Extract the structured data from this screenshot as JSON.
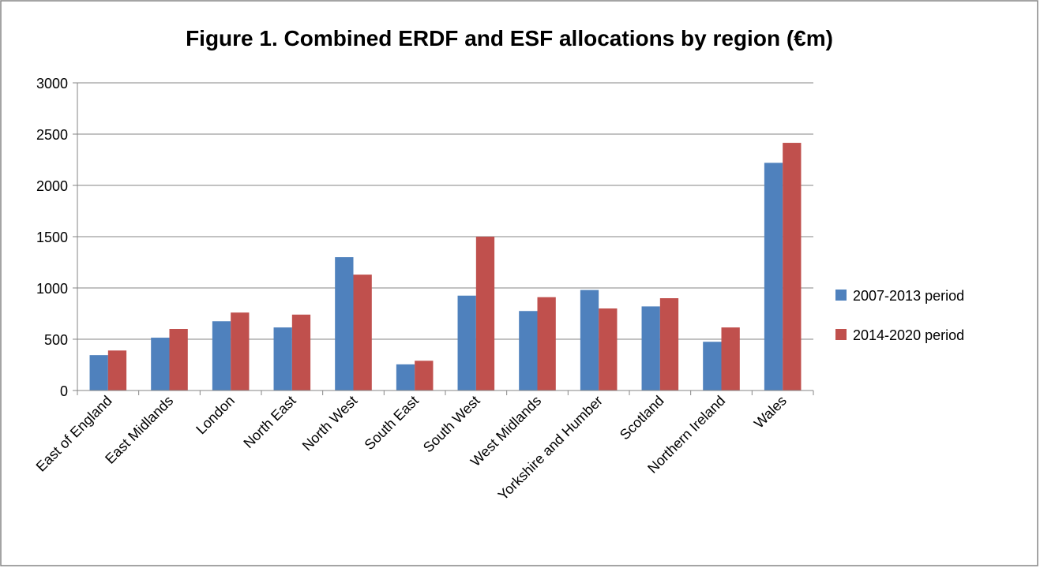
{
  "chart_data": {
    "type": "bar",
    "title": "Figure 1. Combined ERDF and ESF allocations by region (€m)",
    "categories": [
      "East of England",
      "East Midlands",
      "London",
      "North East",
      "North West",
      "South East",
      "South West",
      "West Midlands",
      "Yorkshire and Humber",
      "Scotland",
      "Northern Ireland",
      "Wales"
    ],
    "series": [
      {
        "name": "2007-2013 period",
        "color": "#4f81bd",
        "values": [
          345,
          515,
          675,
          615,
          1300,
          255,
          925,
          775,
          980,
          820,
          475,
          2220
        ]
      },
      {
        "name": "2014-2020 period",
        "color": "#c0504d",
        "values": [
          390,
          600,
          760,
          740,
          1130,
          290,
          1500,
          910,
          800,
          900,
          615,
          2415
        ]
      }
    ],
    "ylim": [
      0,
      3000
    ],
    "yticks": [
      0,
      500,
      1000,
      1500,
      2000,
      2500,
      3000
    ],
    "grid": true,
    "legend": "right"
  }
}
